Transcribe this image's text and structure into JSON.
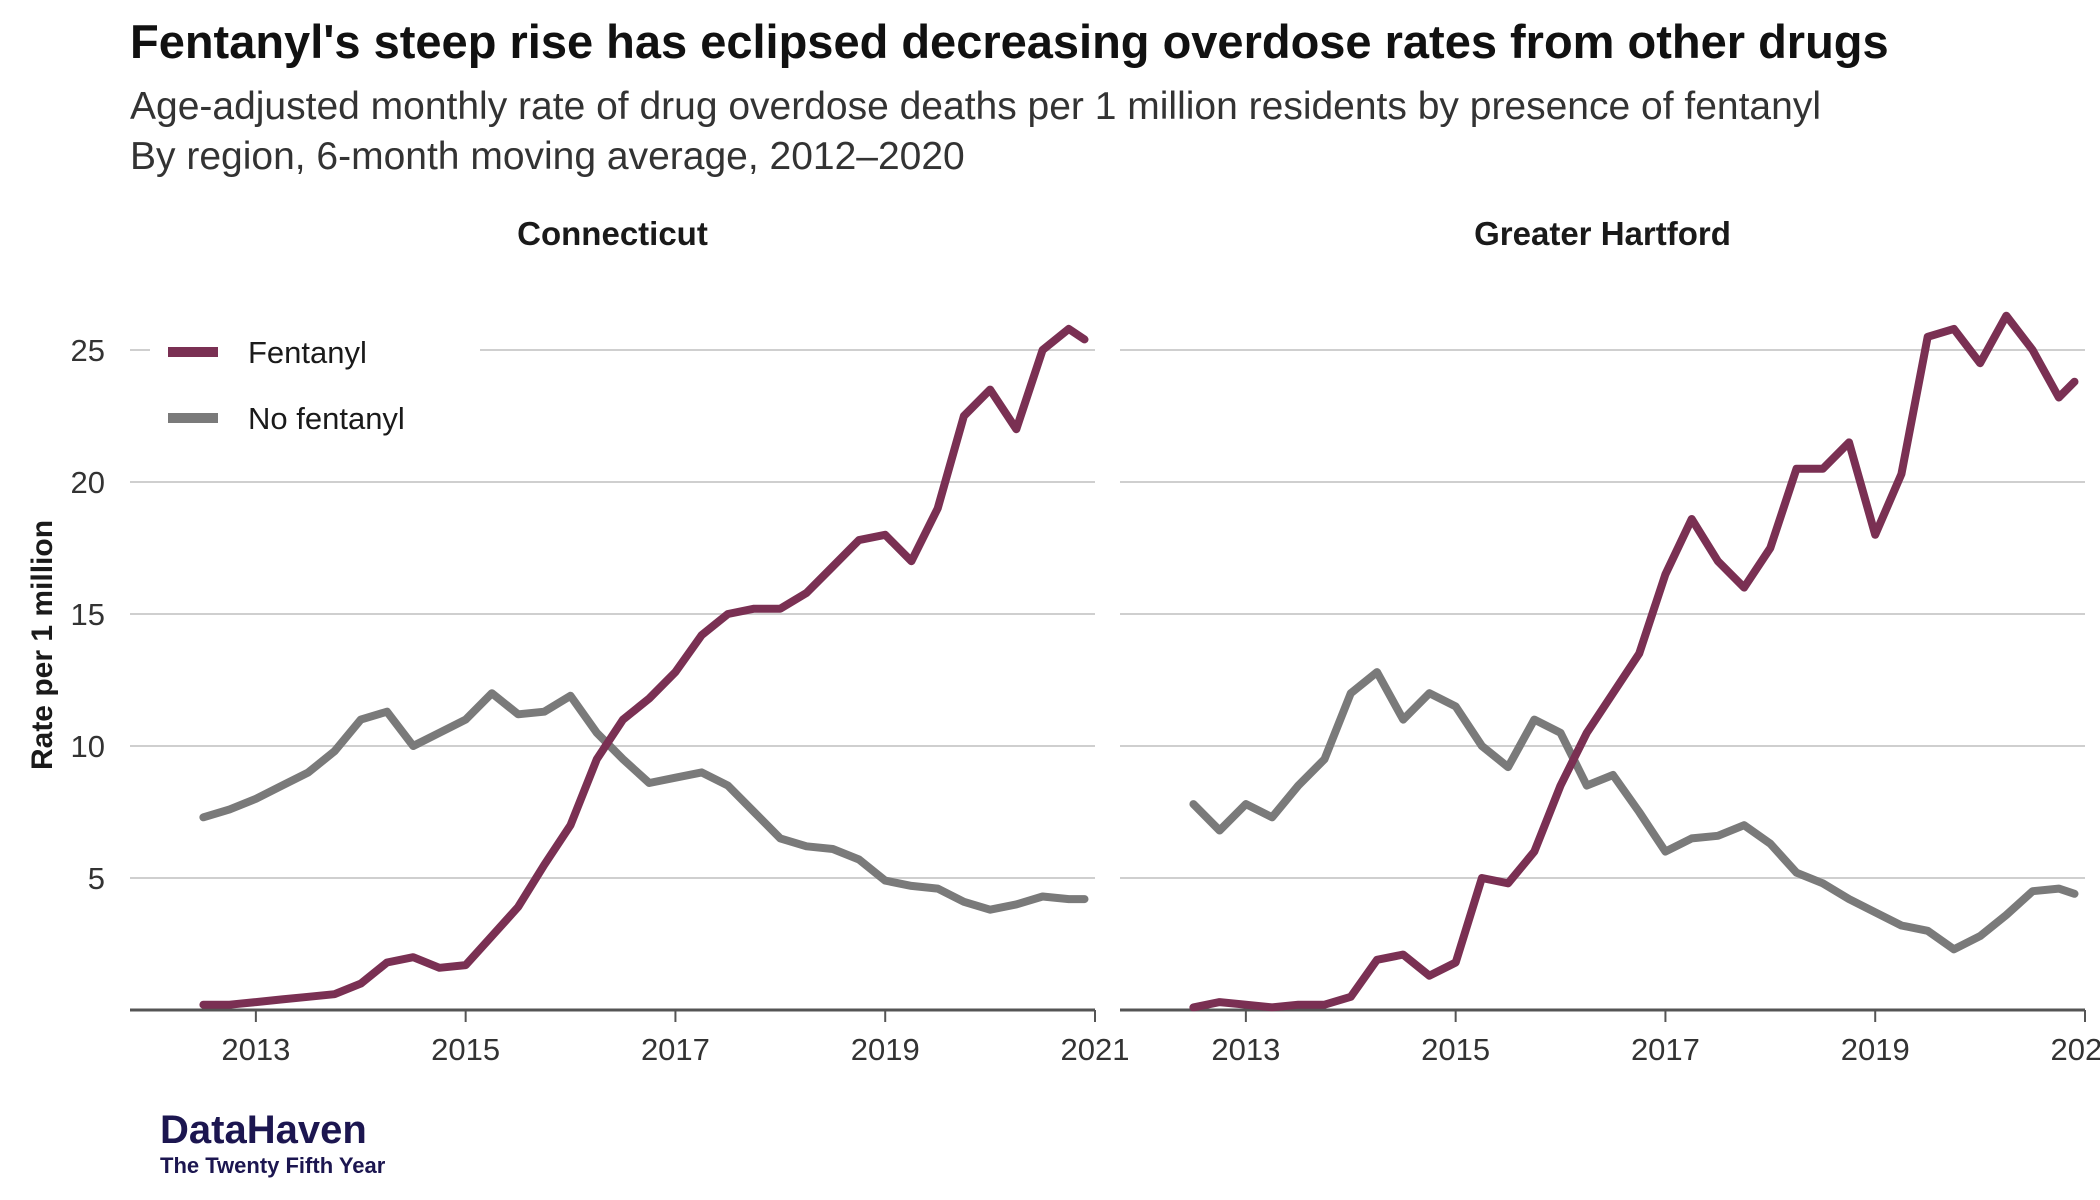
{
  "title": "Fentanyl's steep rise has eclipsed decreasing overdose rates from other drugs",
  "subtitle_line1": "Age-adjusted monthly rate of drug overdose deaths per 1 million residents by presence of fentanyl",
  "subtitle_line2": "By region, 6-month moving average, 2012–2020",
  "brand": {
    "name": "DataHaven",
    "tagline": "The Twenty Fifth Year"
  },
  "colors": {
    "fentanyl": "#7a3053",
    "no_fentanyl": "#7a7a7a",
    "grid": "#cfcfcf",
    "axis": "#555555"
  },
  "chart_data": {
    "type": "line",
    "ylabel": "Rate per 1 million",
    "xlabel": "",
    "xlim": [
      2011.8,
      2021.0
    ],
    "ylim": [
      -0.5,
      27
    ],
    "yticks": [
      5,
      10,
      15,
      20,
      25
    ],
    "xticks": [
      2013,
      2015,
      2017,
      2019,
      2021
    ],
    "grid": true,
    "legend_placement": "top-left",
    "legend": [
      {
        "label": "Fentanyl",
        "color": "#7a3053"
      },
      {
        "label": "No fentanyl",
        "color": "#7a7a7a"
      }
    ],
    "facets": [
      {
        "name": "Connecticut",
        "series": [
          {
            "name": "Fentanyl",
            "x": [
              2012.5,
              2012.75,
              2013.0,
              2013.25,
              2013.5,
              2013.75,
              2014.0,
              2014.25,
              2014.5,
              2014.75,
              2015.0,
              2015.25,
              2015.5,
              2015.75,
              2016.0,
              2016.25,
              2016.5,
              2016.75,
              2017.0,
              2017.25,
              2017.5,
              2017.75,
              2018.0,
              2018.25,
              2018.5,
              2018.75,
              2019.0,
              2019.25,
              2019.5,
              2019.75,
              2020.0,
              2020.25,
              2020.5,
              2020.75,
              2020.9
            ],
            "values": [
              0.2,
              0.2,
              0.3,
              0.4,
              0.5,
              0.6,
              1.0,
              1.8,
              2.0,
              1.6,
              1.7,
              2.8,
              3.9,
              5.5,
              7.0,
              9.5,
              11.0,
              11.8,
              12.8,
              14.2,
              15.0,
              15.2,
              15.2,
              15.8,
              16.8,
              17.8,
              18.0,
              17.0,
              19.0,
              22.5,
              23.5,
              22.0,
              25.0,
              25.8,
              25.4
            ]
          },
          {
            "name": "No fentanyl",
            "x": [
              2012.5,
              2012.75,
              2013.0,
              2013.25,
              2013.5,
              2013.75,
              2014.0,
              2014.25,
              2014.5,
              2014.75,
              2015.0,
              2015.25,
              2015.5,
              2015.75,
              2016.0,
              2016.25,
              2016.5,
              2016.75,
              2017.0,
              2017.25,
              2017.5,
              2017.75,
              2018.0,
              2018.25,
              2018.5,
              2018.75,
              2019.0,
              2019.25,
              2019.5,
              2019.75,
              2020.0,
              2020.25,
              2020.5,
              2020.75,
              2020.9
            ],
            "values": [
              7.3,
              7.6,
              8.0,
              8.5,
              9.0,
              9.8,
              11.0,
              11.3,
              10.0,
              10.5,
              11.0,
              12.0,
              11.2,
              11.3,
              11.9,
              10.5,
              9.5,
              8.6,
              8.8,
              9.0,
              8.5,
              7.5,
              6.5,
              6.2,
              6.1,
              5.7,
              4.9,
              4.7,
              4.6,
              4.1,
              3.8,
              4.0,
              4.3,
              4.2,
              4.2
            ]
          }
        ]
      },
      {
        "name": "Greater Hartford",
        "series": [
          {
            "name": "Fentanyl",
            "x": [
              2012.5,
              2012.75,
              2013.0,
              2013.25,
              2013.5,
              2013.75,
              2014.0,
              2014.25,
              2014.5,
              2014.75,
              2015.0,
              2015.25,
              2015.5,
              2015.75,
              2016.0,
              2016.25,
              2016.5,
              2016.75,
              2017.0,
              2017.25,
              2017.5,
              2017.75,
              2018.0,
              2018.25,
              2018.5,
              2018.75,
              2019.0,
              2019.25,
              2019.5,
              2019.75,
              2020.0,
              2020.25,
              2020.5,
              2020.75,
              2020.9
            ],
            "values": [
              0.1,
              0.3,
              0.2,
              0.1,
              0.2,
              0.2,
              0.5,
              1.9,
              2.1,
              1.3,
              1.8,
              5.0,
              4.8,
              6.0,
              8.5,
              10.5,
              12.0,
              13.5,
              16.5,
              18.6,
              17.0,
              16.0,
              17.5,
              20.5,
              20.5,
              21.5,
              18.0,
              20.3,
              25.5,
              25.8,
              24.5,
              26.3,
              25.0,
              23.2,
              23.8
            ]
          },
          {
            "name": "No fentanyl",
            "x": [
              2012.5,
              2012.75,
              2013.0,
              2013.25,
              2013.5,
              2013.75,
              2014.0,
              2014.25,
              2014.5,
              2014.75,
              2015.0,
              2015.25,
              2015.5,
              2015.75,
              2016.0,
              2016.25,
              2016.5,
              2016.75,
              2017.0,
              2017.25,
              2017.5,
              2017.75,
              2018.0,
              2018.25,
              2018.5,
              2018.75,
              2019.0,
              2019.25,
              2019.5,
              2019.75,
              2020.0,
              2020.25,
              2020.5,
              2020.75,
              2020.9
            ],
            "values": [
              7.8,
              6.8,
              7.8,
              7.3,
              8.5,
              9.5,
              12.0,
              12.8,
              11.0,
              12.0,
              11.5,
              10.0,
              9.2,
              11.0,
              10.5,
              8.5,
              8.9,
              7.5,
              6.0,
              6.5,
              6.6,
              7.0,
              6.3,
              5.2,
              4.8,
              4.2,
              3.7,
              3.2,
              3.0,
              2.3,
              2.8,
              3.6,
              4.5,
              4.6,
              4.4
            ]
          }
        ]
      }
    ]
  }
}
